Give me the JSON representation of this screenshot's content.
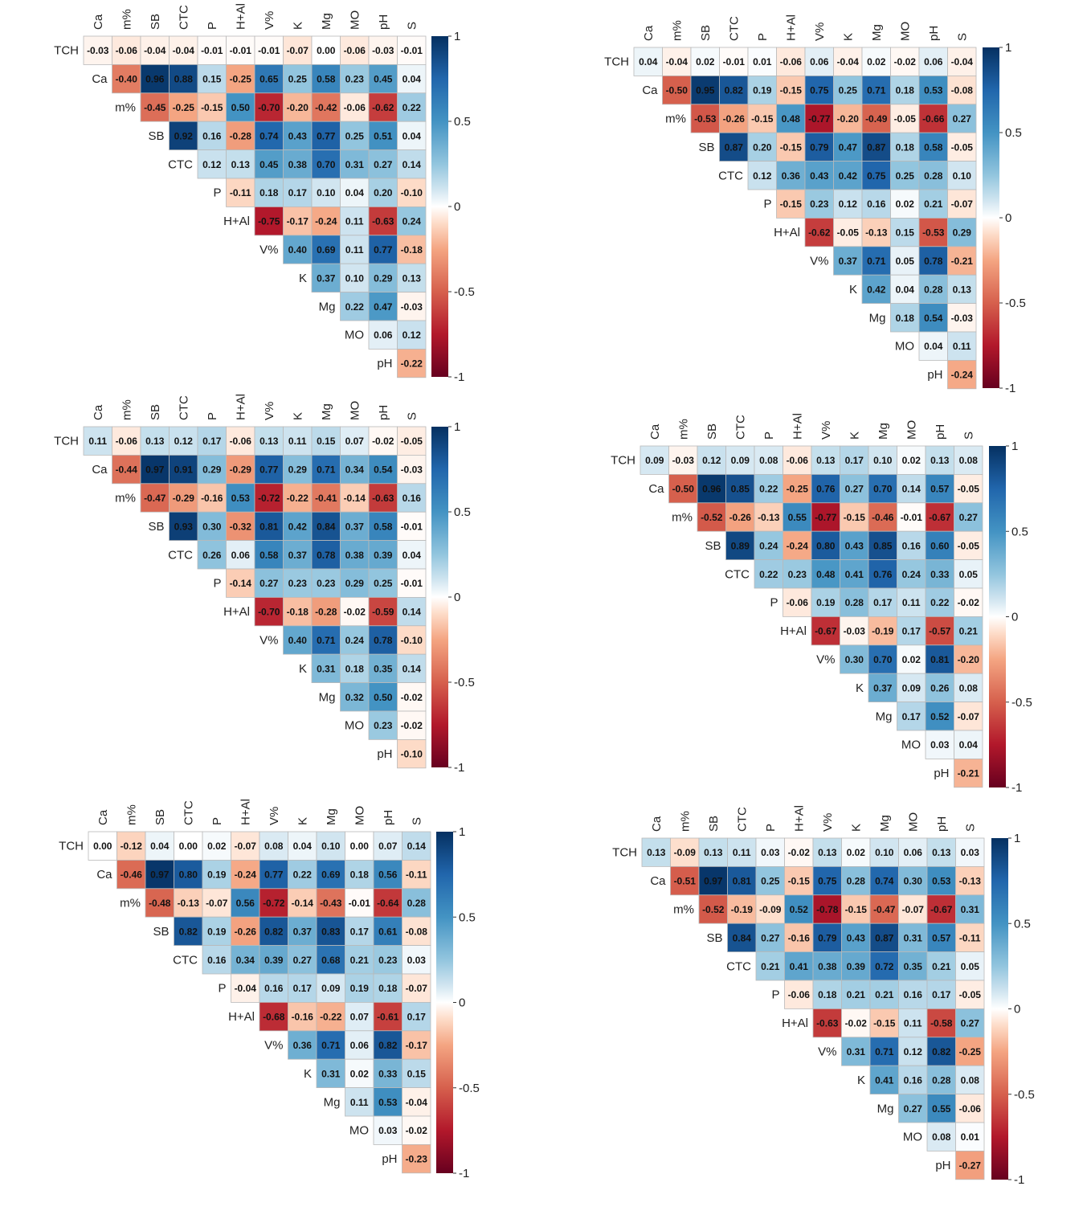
{
  "chart_data": [
    {
      "type": "heatmap",
      "columns": [
        "Ca",
        "m%",
        "SB",
        "CTC",
        "P",
        "H+Al",
        "V%",
        "K",
        "Mg",
        "MO",
        "pH",
        "S"
      ],
      "rows": [
        "TCH",
        "Ca",
        "m%",
        "SB",
        "CTC",
        "P",
        "H+Al",
        "V%",
        "K",
        "Mg",
        "MO",
        "pH"
      ],
      "values": [
        [
          -0.03,
          -0.06,
          -0.04,
          -0.04,
          -0.01,
          -0.01,
          -0.01,
          -0.07,
          0.0,
          -0.06,
          -0.03,
          -0.01
        ],
        [
          -0.4,
          0.96,
          0.88,
          0.15,
          -0.25,
          0.65,
          0.25,
          0.58,
          0.23,
          0.45,
          0.04
        ],
        [
          -0.45,
          -0.25,
          -0.15,
          0.5,
          -0.7,
          -0.2,
          -0.42,
          -0.06,
          -0.62,
          0.22
        ],
        [
          0.92,
          0.16,
          -0.28,
          0.74,
          0.43,
          0.77,
          0.25,
          0.51,
          0.04
        ],
        [
          0.12,
          0.13,
          0.45,
          0.38,
          0.7,
          0.31,
          0.27,
          0.14
        ],
        [
          -0.11,
          0.18,
          0.17,
          0.1,
          0.04,
          0.2,
          -0.1
        ],
        [
          -0.75,
          -0.17,
          -0.24,
          0.11,
          -0.63,
          0.24
        ],
        [
          0.4,
          0.69,
          0.11,
          0.77,
          -0.18
        ],
        [
          0.37,
          0.1,
          0.29,
          0.13
        ],
        [
          0.22,
          0.47,
          -0.03
        ],
        [
          0.06,
          0.12
        ],
        [
          -0.22
        ]
      ],
      "colorbar": {
        "ticks": [
          "1",
          "0.5",
          "0",
          "-0.5",
          "-1"
        ],
        "range": [
          -1,
          1
        ]
      }
    },
    {
      "type": "heatmap",
      "columns": [
        "Ca",
        "m%",
        "SB",
        "CTC",
        "P",
        "H+Al",
        "V%",
        "K",
        "Mg",
        "MO",
        "pH",
        "S"
      ],
      "rows": [
        "TCH",
        "Ca",
        "m%",
        "SB",
        "CTC",
        "P",
        "H+Al",
        "V%",
        "K",
        "Mg",
        "MO",
        "pH"
      ],
      "values": [
        [
          0.04,
          -0.04,
          0.02,
          -0.01,
          0.01,
          -0.06,
          0.06,
          -0.04,
          0.02,
          -0.02,
          0.06,
          -0.04
        ],
        [
          -0.5,
          0.95,
          0.82,
          0.19,
          -0.15,
          0.75,
          0.25,
          0.71,
          0.18,
          0.53,
          -0.08
        ],
        [
          -0.53,
          -0.26,
          -0.15,
          0.48,
          -0.77,
          -0.2,
          -0.49,
          -0.05,
          -0.66,
          0.27
        ],
        [
          0.87,
          0.2,
          -0.15,
          0.79,
          0.47,
          0.87,
          0.18,
          0.58,
          -0.05
        ],
        [
          0.12,
          0.36,
          0.43,
          0.42,
          0.75,
          0.25,
          0.28,
          0.1
        ],
        [
          -0.15,
          0.23,
          0.12,
          0.16,
          0.02,
          0.21,
          -0.07
        ],
        [
          -0.62,
          -0.05,
          -0.13,
          0.15,
          -0.53,
          0.29
        ],
        [
          0.37,
          0.71,
          0.05,
          0.78,
          -0.21
        ],
        [
          0.42,
          0.04,
          0.28,
          0.13
        ],
        [
          0.18,
          0.54,
          -0.03
        ],
        [
          0.04,
          0.11
        ],
        [
          -0.24
        ]
      ],
      "colorbar": {
        "ticks": [
          "1",
          "0.5",
          "0",
          "-0.5",
          "-1"
        ],
        "range": [
          -1,
          1
        ]
      }
    },
    {
      "type": "heatmap",
      "columns": [
        "Ca",
        "m%",
        "SB",
        "CTC",
        "P",
        "H+Al",
        "V%",
        "K",
        "Mg",
        "MO",
        "pH",
        "S"
      ],
      "rows": [
        "TCH",
        "Ca",
        "m%",
        "SB",
        "CTC",
        "P",
        "H+Al",
        "V%",
        "K",
        "Mg",
        "MO",
        "pH"
      ],
      "values": [
        [
          0.11,
          -0.06,
          0.13,
          0.12,
          0.17,
          -0.06,
          0.13,
          0.11,
          0.15,
          0.07,
          -0.02,
          -0.05
        ],
        [
          -0.44,
          0.97,
          0.91,
          0.29,
          -0.29,
          0.77,
          0.29,
          0.71,
          0.34,
          0.54,
          -0.03
        ],
        [
          -0.47,
          -0.29,
          -0.16,
          0.53,
          -0.72,
          -0.22,
          -0.41,
          -0.14,
          -0.63,
          0.16
        ],
        [
          0.93,
          0.3,
          -0.32,
          0.81,
          0.42,
          0.84,
          0.37,
          0.58,
          -0.01
        ],
        [
          0.26,
          0.06,
          0.58,
          0.37,
          0.78,
          0.38,
          0.39,
          0.04
        ],
        [
          -0.14,
          0.27,
          0.23,
          0.23,
          0.29,
          0.25,
          -0.01
        ],
        [
          -0.7,
          -0.18,
          -0.28,
          -0.02,
          -0.59,
          0.14
        ],
        [
          0.4,
          0.71,
          0.24,
          0.78,
          -0.1
        ],
        [
          0.31,
          0.18,
          0.35,
          0.14
        ],
        [
          0.32,
          0.5,
          -0.02
        ],
        [
          0.23,
          -0.02
        ],
        [
          -0.1
        ]
      ],
      "colorbar": {
        "ticks": [
          "1",
          "0.5",
          "0",
          "-0.5",
          "-1"
        ],
        "range": [
          -1,
          1
        ]
      }
    },
    {
      "type": "heatmap",
      "columns": [
        "Ca",
        "m%",
        "SB",
        "CTC",
        "P",
        "H+Al",
        "V%",
        "K",
        "Mg",
        "MO",
        "pH",
        "S"
      ],
      "rows": [
        "TCH",
        "Ca",
        "m%",
        "SB",
        "CTC",
        "P",
        "H+Al",
        "V%",
        "K",
        "Mg",
        "MO",
        "pH"
      ],
      "values": [
        [
          0.09,
          -0.03,
          0.12,
          0.09,
          0.08,
          -0.06,
          0.13,
          0.17,
          0.1,
          0.02,
          0.13,
          0.08
        ],
        [
          -0.5,
          0.96,
          0.85,
          0.22,
          -0.25,
          0.76,
          0.27,
          0.7,
          0.14,
          0.57,
          -0.05
        ],
        [
          -0.52,
          -0.26,
          -0.13,
          0.55,
          -0.77,
          -0.15,
          -0.46,
          -0.01,
          -0.67,
          0.27
        ],
        [
          0.89,
          0.24,
          -0.24,
          0.8,
          0.43,
          0.85,
          0.16,
          0.6,
          -0.05
        ],
        [
          0.22,
          0.23,
          0.48,
          0.41,
          0.76,
          0.24,
          0.33,
          0.05
        ],
        [
          -0.06,
          0.19,
          0.28,
          0.17,
          0.11,
          0.22,
          -0.02
        ],
        [
          -0.67,
          -0.03,
          -0.19,
          0.17,
          -0.57,
          0.21
        ],
        [
          0.3,
          0.7,
          0.02,
          0.81,
          -0.2
        ],
        [
          0.37,
          0.09,
          0.26,
          0.08
        ],
        [
          0.17,
          0.52,
          -0.07
        ],
        [
          0.03,
          0.04
        ],
        [
          -0.21
        ]
      ],
      "colorbar": {
        "ticks": [
          "1",
          "0.5",
          "0",
          "-0.5",
          "-1"
        ],
        "range": [
          -1,
          1
        ]
      }
    },
    {
      "type": "heatmap",
      "columns": [
        "Ca",
        "m%",
        "SB",
        "CTC",
        "P",
        "H+Al",
        "V%",
        "K",
        "Mg",
        "MO",
        "pH",
        "S"
      ],
      "rows": [
        "TCH",
        "Ca",
        "m%",
        "SB",
        "CTC",
        "P",
        "H+Al",
        "V%",
        "K",
        "Mg",
        "MO",
        "pH"
      ],
      "values": [
        [
          0.0,
          -0.12,
          0.04,
          0.0,
          0.02,
          -0.07,
          0.08,
          0.04,
          0.1,
          0.0,
          0.07,
          0.14
        ],
        [
          -0.46,
          0.97,
          0.8,
          0.19,
          -0.24,
          0.77,
          0.22,
          0.69,
          0.18,
          0.56,
          -0.11
        ],
        [
          -0.48,
          -0.13,
          -0.07,
          0.56,
          -0.72,
          -0.14,
          -0.43,
          -0.01,
          -0.64,
          0.28
        ],
        [
          0.82,
          0.19,
          -0.26,
          0.82,
          0.37,
          0.83,
          0.17,
          0.61,
          -0.08
        ],
        [
          0.16,
          0.34,
          0.39,
          0.27,
          0.68,
          0.21,
          0.23,
          0.03
        ],
        [
          -0.04,
          0.16,
          0.17,
          0.09,
          0.19,
          0.18,
          -0.07
        ],
        [
          -0.68,
          -0.16,
          -0.22,
          0.07,
          -0.61,
          0.17
        ],
        [
          0.36,
          0.71,
          0.06,
          0.82,
          -0.17
        ],
        [
          0.31,
          0.02,
          0.33,
          0.15
        ],
        [
          0.11,
          0.53,
          -0.04
        ],
        [
          0.03,
          -0.02
        ],
        [
          -0.23
        ]
      ],
      "colorbar": {
        "ticks": [
          "1",
          "0.5",
          "0",
          "-0.5",
          "-1"
        ],
        "range": [
          -1,
          1
        ]
      }
    },
    {
      "type": "heatmap",
      "columns": [
        "Ca",
        "m%",
        "SB",
        "CTC",
        "P",
        "H+Al",
        "V%",
        "K",
        "Mg",
        "MO",
        "pH",
        "S"
      ],
      "rows": [
        "TCH",
        "Ca",
        "m%",
        "SB",
        "CTC",
        "P",
        "H+Al",
        "V%",
        "K",
        "Mg",
        "MO",
        "pH"
      ],
      "values": [
        [
          0.13,
          -0.09,
          0.13,
          0.11,
          0.03,
          -0.02,
          0.13,
          0.02,
          0.1,
          0.06,
          0.13,
          0.03
        ],
        [
          -0.51,
          0.97,
          0.81,
          0.25,
          -0.15,
          0.75,
          0.28,
          0.74,
          0.3,
          0.53,
          -0.13
        ],
        [
          -0.52,
          -0.19,
          -0.09,
          0.52,
          -0.78,
          -0.15,
          -0.47,
          -0.07,
          -0.67,
          0.31
        ],
        [
          0.84,
          0.27,
          -0.16,
          0.79,
          0.43,
          0.87,
          0.31,
          0.57,
          -0.11
        ],
        [
          0.21,
          0.41,
          0.38,
          0.39,
          0.72,
          0.35,
          0.21,
          0.05
        ],
        [
          -0.06,
          0.18,
          0.21,
          0.21,
          0.16,
          0.17,
          -0.05
        ],
        [
          -0.63,
          -0.02,
          -0.15,
          0.11,
          -0.58,
          0.27
        ],
        [
          0.31,
          0.71,
          0.12,
          0.82,
          -0.25
        ],
        [
          0.41,
          0.16,
          0.28,
          0.08
        ],
        [
          0.27,
          0.55,
          -0.06
        ],
        [
          0.08,
          0.01
        ],
        [
          -0.27
        ]
      ],
      "colorbar": {
        "ticks": [
          "1",
          "0.5",
          "0",
          "-0.5",
          "-1"
        ],
        "range": [
          -1,
          1
        ]
      }
    }
  ]
}
